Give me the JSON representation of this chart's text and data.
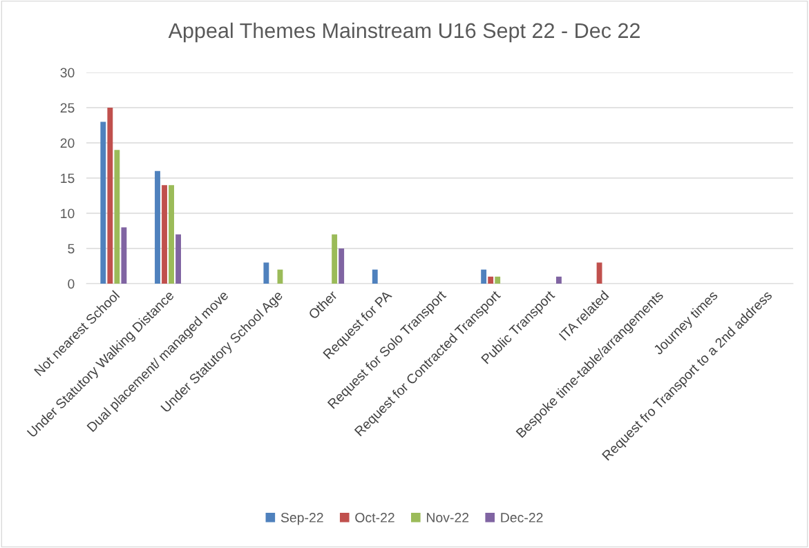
{
  "chart_data": {
    "type": "bar",
    "title": "Appeal Themes Mainstream U16 Sept 22 - Dec 22",
    "categories": [
      "Not nearest School",
      "Under Statutory Walking Distance",
      "Dual placement/ managed move",
      "Under Statutory School Age",
      "Other",
      "Request for PA",
      "Request for Solo Transport",
      "Request for Contracted Transport",
      "Public Transport",
      "ITA related",
      "Bespoke time-table/arrangements",
      "Journey times",
      "Request fro Transport to a 2nd address"
    ],
    "series": [
      {
        "name": "Sep-22",
        "color": "#4f81bd",
        "values": [
          23,
          16,
          0,
          3,
          0,
          2,
          0,
          2,
          0,
          0,
          0,
          0,
          0
        ]
      },
      {
        "name": "Oct-22",
        "color": "#c0504d",
        "values": [
          25,
          14,
          0,
          0,
          0,
          0,
          0,
          1,
          0,
          3,
          0,
          0,
          0
        ]
      },
      {
        "name": "Nov-22",
        "color": "#9bbb59",
        "values": [
          19,
          14,
          0,
          2,
          7,
          0,
          0,
          1,
          0,
          0,
          0,
          0,
          0
        ]
      },
      {
        "name": "Dec-22",
        "color": "#8064a2",
        "values": [
          8,
          7,
          0,
          0,
          5,
          0,
          0,
          0,
          1,
          0,
          0,
          0,
          0
        ]
      }
    ],
    "ylim": [
      0,
      30
    ],
    "yticks": [
      0,
      5,
      10,
      15,
      20,
      25,
      30
    ],
    "grid": "y",
    "legend": "bottom"
  }
}
